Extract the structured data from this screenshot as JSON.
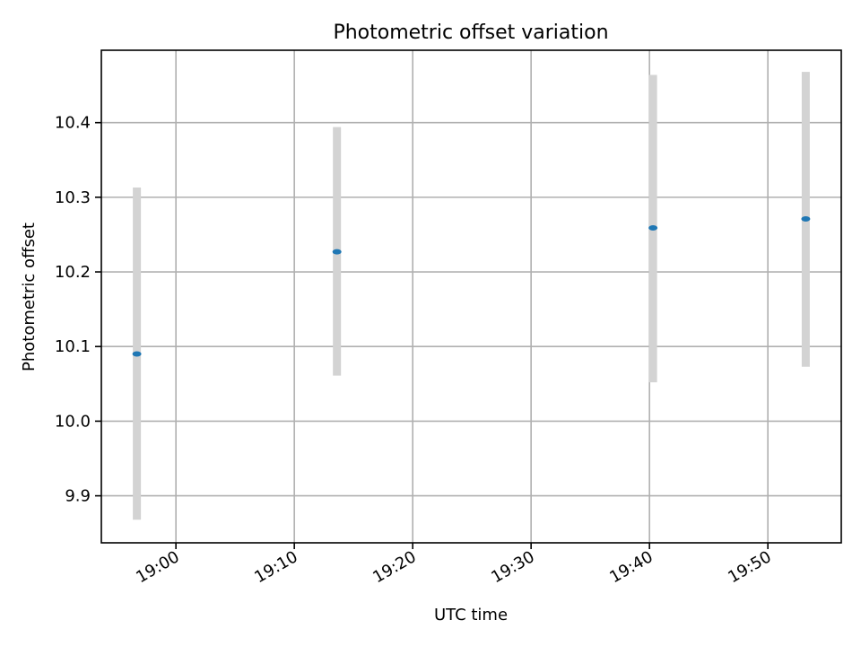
{
  "chart_data": {
    "type": "scatter",
    "title": "Photometric offset variation",
    "xlabel": "UTC time",
    "ylabel": "Photometric offset",
    "x_ticks": [
      "19:00",
      "19:10",
      "19:20",
      "19:30",
      "19:40",
      "19:50"
    ],
    "y_ticks": [
      "9.9",
      "10.0",
      "10.1",
      "10.2",
      "10.3",
      "10.4"
    ],
    "xlim": [
      "18:53.7",
      "19:56.2"
    ],
    "ylim": [
      9.837,
      10.497
    ],
    "grid": true,
    "points": [
      {
        "time": "18:56.7",
        "value": 10.09,
        "lower": 9.868,
        "upper": 10.313
      },
      {
        "time": "19:13.6",
        "value": 10.227,
        "lower": 10.061,
        "upper": 10.394
      },
      {
        "time": "19:40.3",
        "value": 10.259,
        "lower": 10.052,
        "upper": 10.464
      },
      {
        "time": "19:53.2",
        "value": 10.271,
        "lower": 10.073,
        "upper": 10.468
      }
    ],
    "colors": {
      "marker": "#1f77b4",
      "errorbar": "#d3d3d3",
      "grid": "#b0b0b0"
    }
  }
}
